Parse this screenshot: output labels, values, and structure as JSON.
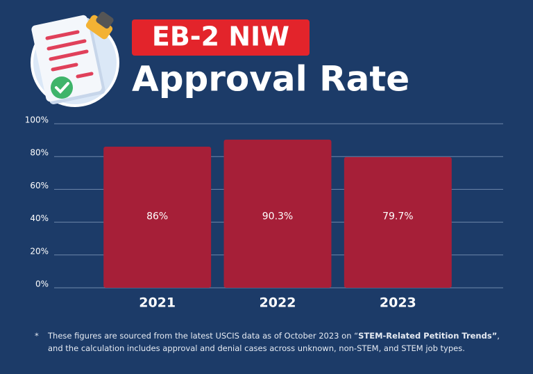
{
  "chart_data": {
    "type": "bar",
    "title": "EB-2 NIW",
    "subtitle": "Approval Rate",
    "categories": [
      "2021",
      "2022",
      "2023"
    ],
    "values": [
      86,
      90.3,
      79.7
    ],
    "value_labels": [
      "86%",
      "90.3%",
      "79.7%"
    ],
    "color": "#a61f38",
    "ylim": [
      0,
      100
    ],
    "yticks": [
      {
        "value": 0,
        "label": "0%"
      },
      {
        "value": 20,
        "label": "20%"
      },
      {
        "value": 40,
        "label": "40%"
      },
      {
        "value": 60,
        "label": "60%"
      },
      {
        "value": 80,
        "label": "80%"
      },
      {
        "value": 100,
        "label": "100%"
      }
    ],
    "grid": true,
    "footnote": {
      "marker": "*",
      "before": "These figures are sourced from the latest USCIS data as of October 2023 on “",
      "bold": "STEM-Related Petition Trends”",
      "after": ", and the calculation includes approval and denial cases across unknown, non-STEM, and STEM job types."
    }
  }
}
